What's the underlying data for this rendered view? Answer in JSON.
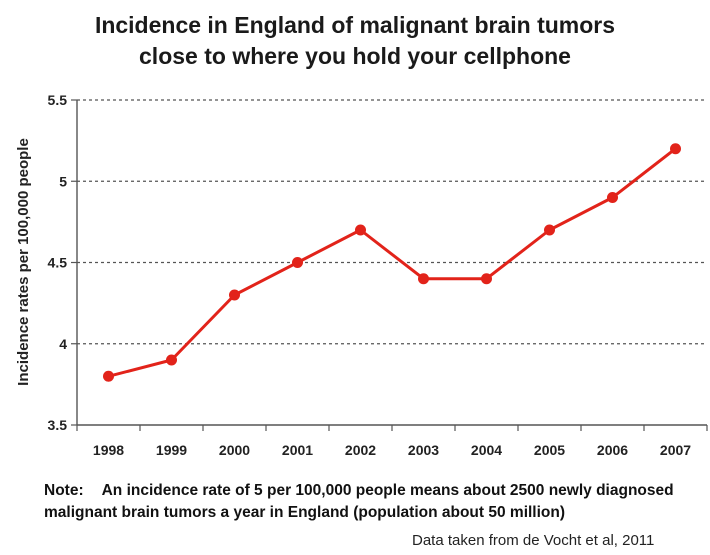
{
  "chart_data": {
    "type": "line",
    "title_lines": [
      "Incidence in England of malignant brain tumors",
      "close to where you hold your cellphone"
    ],
    "xlabel": "",
    "ylabel": "Incidence rates per 100,000 people",
    "x": [
      "1998",
      "1999",
      "2000",
      "2001",
      "2002",
      "2003",
      "2004",
      "2005",
      "2006",
      "2007"
    ],
    "values": [
      3.8,
      3.9,
      4.3,
      4.5,
      4.7,
      4.4,
      4.4,
      4.7,
      4.9,
      5.2
    ],
    "ylim": [
      3.5,
      5.5
    ],
    "yticks": [
      "3.5",
      "4",
      "4.5",
      "5",
      "5.5"
    ],
    "grid": "horizontal dotted",
    "line_color": "#e2231a"
  },
  "note": {
    "label": "Note:",
    "text": "An incidence rate of 5 per 100,000 people means about 2500 newly diagnosed malignant brain tumors a year in England (population about 50 million)"
  },
  "source": "Data taken from de Vocht et al, 2011"
}
